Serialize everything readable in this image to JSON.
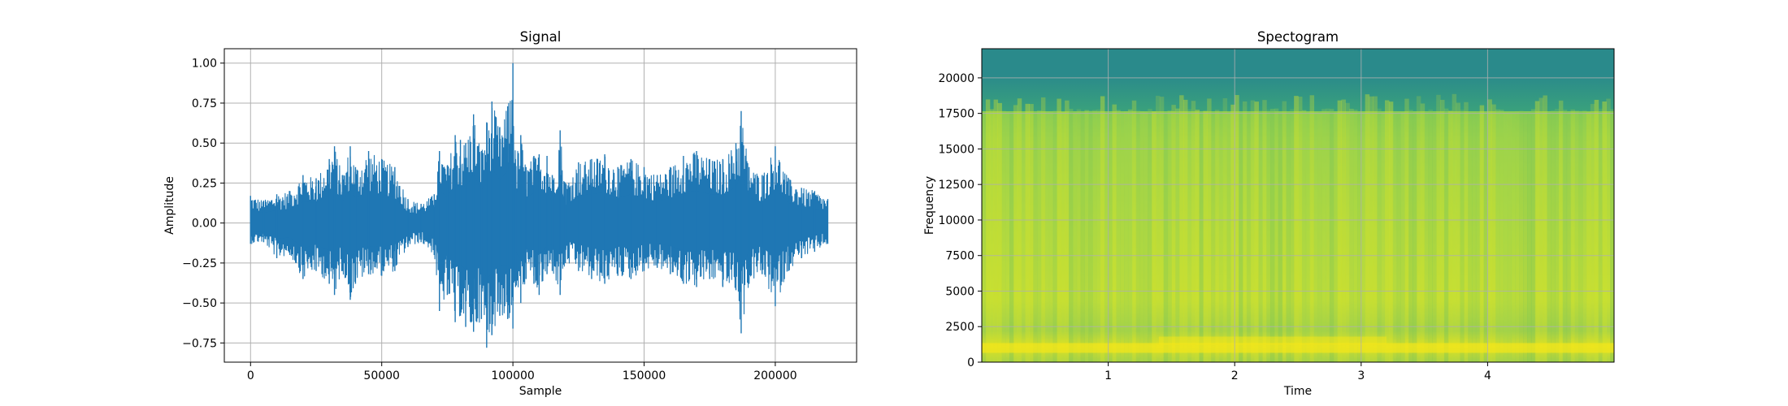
{
  "colors": {
    "signal_line": "#1f77b4",
    "grid": "#b0b0b0",
    "spec_low": "#2a8a8b",
    "spec_mid": "#7cc95a",
    "spec_high": "#cbe02e",
    "spec_peak": "#f0e61c"
  },
  "chart_data": [
    {
      "type": "line",
      "title": "Signal",
      "xlabel": "Sample",
      "ylabel": "Amplitude",
      "xlim": [
        -10000,
        231000
      ],
      "ylim": [
        -0.87,
        1.09
      ],
      "grid": true,
      "x_ticks": [
        {
          "value": 0,
          "label": "0"
        },
        {
          "value": 50000,
          "label": "50000"
        },
        {
          "value": 100000,
          "label": "100000"
        },
        {
          "value": 150000,
          "label": "150000"
        },
        {
          "value": 200000,
          "label": "200000"
        }
      ],
      "y_ticks": [
        {
          "value": -0.75,
          "label": "−0.75"
        },
        {
          "value": -0.5,
          "label": "−0.50"
        },
        {
          "value": -0.25,
          "label": "−0.25"
        },
        {
          "value": 0.0,
          "label": "0.00"
        },
        {
          "value": 0.25,
          "label": "0.25"
        },
        {
          "value": 0.5,
          "label": "0.50"
        },
        {
          "value": 0.75,
          "label": "0.75"
        },
        {
          "value": 1.0,
          "label": "1.00"
        }
      ],
      "envelope": {
        "description_points": "upper/lower amplitude envelope of the waveform, sampled along x",
        "x": [
          0,
          5000,
          10000,
          15000,
          20000,
          25000,
          30000,
          32000,
          35000,
          38000,
          40000,
          45000,
          50000,
          55000,
          60000,
          65000,
          70000,
          72000,
          75000,
          78000,
          80000,
          82000,
          85000,
          88000,
          90000,
          92000,
          95000,
          98000,
          100000,
          101000,
          103000,
          105000,
          108000,
          110000,
          113000,
          115000,
          118000,
          120000,
          125000,
          130000,
          135000,
          140000,
          145000,
          150000,
          155000,
          160000,
          165000,
          170000,
          175000,
          180000,
          185000,
          187000,
          190000,
          195000,
          200000,
          205000,
          210000,
          215000,
          220000
        ],
        "upper": [
          0.17,
          0.14,
          0.18,
          0.2,
          0.3,
          0.28,
          0.4,
          0.48,
          0.3,
          0.48,
          0.35,
          0.45,
          0.4,
          0.35,
          0.15,
          0.12,
          0.18,
          0.45,
          0.36,
          0.55,
          0.52,
          0.5,
          0.68,
          0.45,
          0.63,
          0.76,
          0.6,
          0.73,
          1.0,
          0.4,
          0.55,
          0.35,
          0.42,
          0.43,
          0.42,
          0.3,
          0.58,
          0.25,
          0.38,
          0.4,
          0.43,
          0.35,
          0.4,
          0.35,
          0.3,
          0.35,
          0.42,
          0.45,
          0.4,
          0.4,
          0.5,
          0.7,
          0.35,
          0.3,
          0.48,
          0.28,
          0.22,
          0.2,
          0.15
        ],
        "lower": [
          -0.13,
          -0.12,
          -0.22,
          -0.2,
          -0.35,
          -0.3,
          -0.38,
          -0.45,
          -0.3,
          -0.48,
          -0.38,
          -0.32,
          -0.33,
          -0.3,
          -0.15,
          -0.12,
          -0.2,
          -0.55,
          -0.45,
          -0.62,
          -0.58,
          -0.65,
          -0.68,
          -0.6,
          -0.78,
          -0.7,
          -0.58,
          -0.6,
          -0.66,
          -0.4,
          -0.5,
          -0.35,
          -0.38,
          -0.45,
          -0.32,
          -0.3,
          -0.45,
          -0.25,
          -0.3,
          -0.35,
          -0.38,
          -0.33,
          -0.35,
          -0.3,
          -0.28,
          -0.32,
          -0.38,
          -0.4,
          -0.35,
          -0.4,
          -0.42,
          -0.69,
          -0.38,
          -0.32,
          -0.52,
          -0.3,
          -0.22,
          -0.18,
          -0.13
        ]
      }
    },
    {
      "type": "heatmap",
      "title": "Spectogram",
      "xlabel": "Time",
      "ylabel": "Frequency",
      "xlim": [
        0.0,
        5.0
      ],
      "ylim": [
        0,
        22050
      ],
      "grid": true,
      "x_ticks": [
        {
          "value": 1,
          "label": "1"
        },
        {
          "value": 2,
          "label": "2"
        },
        {
          "value": 3,
          "label": "3"
        },
        {
          "value": 4,
          "label": "4"
        }
      ],
      "y_ticks": [
        {
          "value": 0,
          "label": "0"
        },
        {
          "value": 2500,
          "label": "2500"
        },
        {
          "value": 5000,
          "label": "5000"
        },
        {
          "value": 7500,
          "label": "7500"
        },
        {
          "value": 10000,
          "label": "10000"
        },
        {
          "value": 12500,
          "label": "12500"
        },
        {
          "value": 15000,
          "label": "15000"
        },
        {
          "value": 17500,
          "label": "17500"
        },
        {
          "value": 20000,
          "label": "20000"
        }
      ],
      "cutoff_frequency": 17500,
      "low_band_peak_frequency": 1000
    }
  ]
}
